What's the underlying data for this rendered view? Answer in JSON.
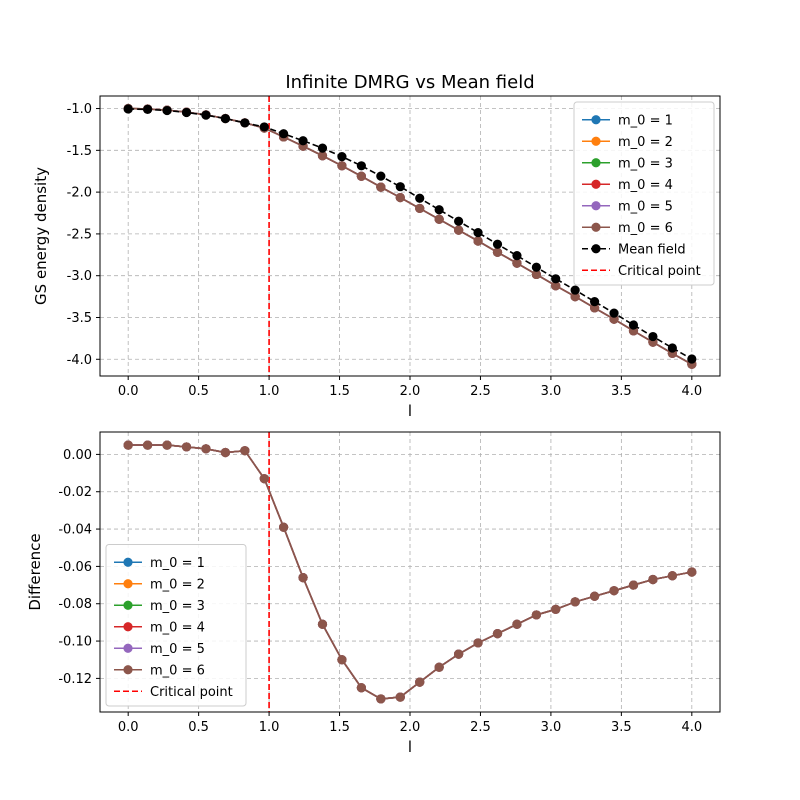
{
  "chart_data": [
    {
      "type": "line",
      "title": "Infinite DMRG vs Mean field",
      "xlabel": "l",
      "ylabel": "GS energy density",
      "xlim": [
        -0.2,
        4.2
      ],
      "ylim": [
        -4.2,
        -0.85
      ],
      "xticks": [
        "0.0",
        "0.5",
        "1.0",
        "1.5",
        "2.0",
        "2.5",
        "3.0",
        "3.5",
        "4.0"
      ],
      "yticks": [
        "-1.0",
        "-1.5",
        "-2.0",
        "-2.5",
        "-3.0",
        "-3.5",
        "-4.0"
      ],
      "grid": true,
      "legend_position": "top-right",
      "x": [
        0.0,
        0.138,
        0.276,
        0.414,
        0.552,
        0.69,
        0.828,
        0.966,
        1.103,
        1.241,
        1.379,
        1.517,
        1.655,
        1.793,
        1.931,
        2.069,
        2.207,
        2.345,
        2.483,
        2.621,
        2.759,
        2.897,
        3.034,
        3.172,
        3.31,
        3.448,
        3.586,
        3.724,
        3.862,
        4.0
      ],
      "series": [
        {
          "name": "m_0 = 1",
          "color": "#1f77b4",
          "style": "solid",
          "values": [
            -1.0,
            -1.005,
            -1.019,
            -1.043,
            -1.076,
            -1.119,
            -1.171,
            -1.233,
            -1.34,
            -1.45,
            -1.565,
            -1.685,
            -1.81,
            -1.94,
            -2.065,
            -2.195,
            -2.325,
            -2.455,
            -2.585,
            -2.72,
            -2.85,
            -2.985,
            -3.12,
            -3.25,
            -3.385,
            -3.52,
            -3.66,
            -3.795,
            -3.93,
            -4.06
          ]
        },
        {
          "name": "m_0 = 2",
          "color": "#ff7f0e",
          "style": "solid",
          "values": [
            -1.0,
            -1.005,
            -1.019,
            -1.043,
            -1.076,
            -1.119,
            -1.171,
            -1.233,
            -1.34,
            -1.45,
            -1.565,
            -1.685,
            -1.81,
            -1.94,
            -2.065,
            -2.195,
            -2.325,
            -2.455,
            -2.585,
            -2.72,
            -2.85,
            -2.985,
            -3.12,
            -3.25,
            -3.385,
            -3.52,
            -3.66,
            -3.795,
            -3.93,
            -4.06
          ]
        },
        {
          "name": "m_0 = 3",
          "color": "#2ca02c",
          "style": "solid",
          "values": [
            -1.0,
            -1.005,
            -1.019,
            -1.043,
            -1.076,
            -1.119,
            -1.171,
            -1.233,
            -1.34,
            -1.45,
            -1.565,
            -1.685,
            -1.81,
            -1.94,
            -2.065,
            -2.195,
            -2.325,
            -2.455,
            -2.585,
            -2.72,
            -2.85,
            -2.985,
            -3.12,
            -3.25,
            -3.385,
            -3.52,
            -3.66,
            -3.795,
            -3.93,
            -4.06
          ]
        },
        {
          "name": "m_0 = 4",
          "color": "#d62728",
          "style": "solid",
          "values": [
            -1.0,
            -1.005,
            -1.019,
            -1.043,
            -1.076,
            -1.119,
            -1.171,
            -1.233,
            -1.34,
            -1.45,
            -1.565,
            -1.685,
            -1.81,
            -1.94,
            -2.065,
            -2.195,
            -2.325,
            -2.455,
            -2.585,
            -2.72,
            -2.85,
            -2.985,
            -3.12,
            -3.25,
            -3.385,
            -3.52,
            -3.66,
            -3.795,
            -3.93,
            -4.06
          ]
        },
        {
          "name": "m_0 = 5",
          "color": "#9467bd",
          "style": "solid",
          "values": [
            -1.0,
            -1.005,
            -1.019,
            -1.043,
            -1.076,
            -1.119,
            -1.171,
            -1.233,
            -1.34,
            -1.45,
            -1.565,
            -1.685,
            -1.81,
            -1.94,
            -2.065,
            -2.195,
            -2.325,
            -2.455,
            -2.585,
            -2.72,
            -2.85,
            -2.985,
            -3.12,
            -3.25,
            -3.385,
            -3.52,
            -3.66,
            -3.795,
            -3.93,
            -4.06
          ]
        },
        {
          "name": "m_0 = 6",
          "color": "#8c564b",
          "style": "solid",
          "values": [
            -1.0,
            -1.005,
            -1.019,
            -1.043,
            -1.076,
            -1.119,
            -1.171,
            -1.233,
            -1.34,
            -1.45,
            -1.565,
            -1.685,
            -1.81,
            -1.94,
            -2.065,
            -2.195,
            -2.325,
            -2.455,
            -2.585,
            -2.72,
            -2.85,
            -2.985,
            -3.12,
            -3.25,
            -3.385,
            -3.52,
            -3.66,
            -3.795,
            -3.93,
            -4.06
          ]
        },
        {
          "name": "Mean field",
          "color": "#000000",
          "style": "dashed",
          "values": [
            -1.005,
            -1.01,
            -1.024,
            -1.047,
            -1.079,
            -1.12,
            -1.172,
            -1.22,
            -1.301,
            -1.385,
            -1.474,
            -1.575,
            -1.685,
            -1.809,
            -1.935,
            -2.073,
            -2.211,
            -2.348,
            -2.484,
            -2.624,
            -2.76,
            -2.899,
            -3.037,
            -3.172,
            -3.31,
            -3.448,
            -3.59,
            -3.728,
            -3.865,
            -3.997
          ]
        }
      ],
      "vlines": [
        {
          "name": "Critical point",
          "x": 1.0,
          "color": "#ff0000",
          "style": "dashed"
        }
      ]
    },
    {
      "type": "line",
      "title": "",
      "xlabel": "l",
      "ylabel": "Difference",
      "xlim": [
        -0.2,
        4.2
      ],
      "ylim": [
        -0.138,
        0.012
      ],
      "xticks": [
        "0.0",
        "0.5",
        "1.0",
        "1.5",
        "2.0",
        "2.5",
        "3.0",
        "3.5",
        "4.0"
      ],
      "yticks": [
        "0.00",
        "-0.02",
        "-0.04",
        "-0.06",
        "-0.08",
        "-0.10",
        "-0.12"
      ],
      "grid": true,
      "legend_position": "lower-left",
      "x": [
        0.0,
        0.138,
        0.276,
        0.414,
        0.552,
        0.69,
        0.828,
        0.966,
        1.103,
        1.241,
        1.379,
        1.517,
        1.655,
        1.793,
        1.931,
        2.069,
        2.207,
        2.345,
        2.483,
        2.621,
        2.759,
        2.897,
        3.034,
        3.172,
        3.31,
        3.448,
        3.586,
        3.724,
        3.862,
        4.0
      ],
      "series": [
        {
          "name": "m_0 = 1",
          "color": "#1f77b4",
          "style": "solid",
          "values": [
            0.005,
            0.005,
            0.005,
            0.004,
            0.003,
            0.001,
            0.002,
            -0.013,
            -0.039,
            -0.066,
            -0.091,
            -0.11,
            -0.125,
            -0.131,
            -0.13,
            -0.122,
            -0.114,
            -0.107,
            -0.101,
            -0.096,
            -0.091,
            -0.086,
            -0.083,
            -0.079,
            -0.076,
            -0.073,
            -0.07,
            -0.067,
            -0.065,
            -0.063
          ]
        },
        {
          "name": "m_0 = 2",
          "color": "#ff7f0e",
          "style": "solid",
          "values": [
            0.005,
            0.005,
            0.005,
            0.004,
            0.003,
            0.001,
            0.002,
            -0.013,
            -0.039,
            -0.066,
            -0.091,
            -0.11,
            -0.125,
            -0.131,
            -0.13,
            -0.122,
            -0.114,
            -0.107,
            -0.101,
            -0.096,
            -0.091,
            -0.086,
            -0.083,
            -0.079,
            -0.076,
            -0.073,
            -0.07,
            -0.067,
            -0.065,
            -0.063
          ]
        },
        {
          "name": "m_0 = 3",
          "color": "#2ca02c",
          "style": "solid",
          "values": [
            0.005,
            0.005,
            0.005,
            0.004,
            0.003,
            0.001,
            0.002,
            -0.013,
            -0.039,
            -0.066,
            -0.091,
            -0.11,
            -0.125,
            -0.131,
            -0.13,
            -0.122,
            -0.114,
            -0.107,
            -0.101,
            -0.096,
            -0.091,
            -0.086,
            -0.083,
            -0.079,
            -0.076,
            -0.073,
            -0.07,
            -0.067,
            -0.065,
            -0.063
          ]
        },
        {
          "name": "m_0 = 4",
          "color": "#d62728",
          "style": "solid",
          "values": [
            0.005,
            0.005,
            0.005,
            0.004,
            0.003,
            0.001,
            0.002,
            -0.013,
            -0.039,
            -0.066,
            -0.091,
            -0.11,
            -0.125,
            -0.131,
            -0.13,
            -0.122,
            -0.114,
            -0.107,
            -0.101,
            -0.096,
            -0.091,
            -0.086,
            -0.083,
            -0.079,
            -0.076,
            -0.073,
            -0.07,
            -0.067,
            -0.065,
            -0.063
          ]
        },
        {
          "name": "m_0 = 5",
          "color": "#9467bd",
          "style": "solid",
          "values": [
            0.005,
            0.005,
            0.005,
            0.004,
            0.003,
            0.001,
            0.002,
            -0.013,
            -0.039,
            -0.066,
            -0.091,
            -0.11,
            -0.125,
            -0.131,
            -0.13,
            -0.122,
            -0.114,
            -0.107,
            -0.101,
            -0.096,
            -0.091,
            -0.086,
            -0.083,
            -0.079,
            -0.076,
            -0.073,
            -0.07,
            -0.067,
            -0.065,
            -0.063
          ]
        },
        {
          "name": "m_0 = 6",
          "color": "#8c564b",
          "style": "solid",
          "values": [
            0.005,
            0.005,
            0.005,
            0.004,
            0.003,
            0.001,
            0.002,
            -0.013,
            -0.039,
            -0.066,
            -0.091,
            -0.11,
            -0.125,
            -0.131,
            -0.13,
            -0.122,
            -0.114,
            -0.107,
            -0.101,
            -0.096,
            -0.091,
            -0.086,
            -0.083,
            -0.079,
            -0.076,
            -0.073,
            -0.07,
            -0.067,
            -0.065,
            -0.063
          ]
        }
      ],
      "vlines": [
        {
          "name": "Critical point",
          "x": 1.0,
          "color": "#ff0000",
          "style": "dashed"
        }
      ]
    }
  ]
}
